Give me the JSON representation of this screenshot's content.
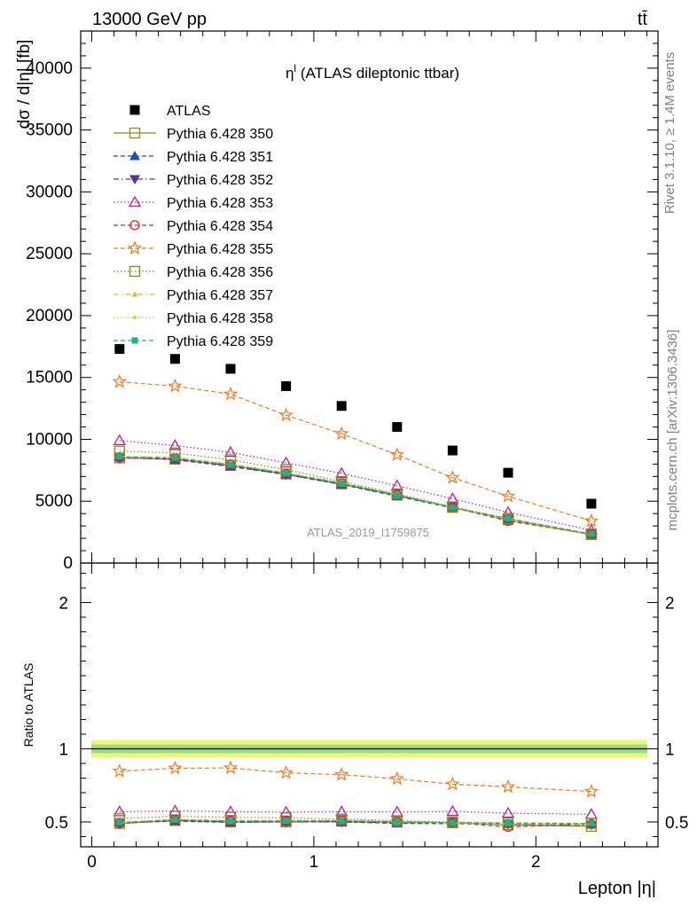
{
  "header": {
    "left": "13000 GeV pp",
    "right": "tt̄"
  },
  "side_labels": {
    "rivet": "Rivet 3.1.10, ≥ 1.4M events",
    "source": "mcplots.cern.ch [arXiv:1306.3436]"
  },
  "chart_data": [
    {
      "type": "line",
      "panel": "main",
      "title": "η",
      "title_sup": "l",
      "title_suffix": " (ATLAS dileptonic ttbar)",
      "xlabel": "Lepton |η|",
      "ylabel": "dσ / d|η| [fb]",
      "watermark": "ATLAS_2019_I1759875",
      "xlim": [
        -0.05,
        2.55
      ],
      "ylim": [
        0,
        43000
      ],
      "yticks": [
        0,
        5000,
        10000,
        15000,
        20000,
        25000,
        30000,
        35000,
        40000
      ],
      "ytick_labels": [
        "0",
        "5000",
        "10000",
        "15000",
        "20000",
        "25000",
        "30000",
        "35000",
        "40000"
      ],
      "x": [
        0.125,
        0.375,
        0.625,
        0.875,
        1.125,
        1.375,
        1.625,
        1.875,
        2.25
      ],
      "legend_position": "top-left",
      "series": [
        {
          "name": "ATLAS",
          "color": "#000000",
          "marker": "square-filled",
          "line": "none",
          "values": [
            17300,
            16500,
            15700,
            14300,
            12700,
            11000,
            9100,
            7300,
            4800
          ]
        },
        {
          "name": "Pythia 6.428 350",
          "color": "#8b8b1a",
          "marker": "square-open",
          "line": "solid",
          "values": [
            8500,
            8400,
            7900,
            7200,
            6400,
            5500,
            4500,
            3500,
            2300
          ]
        },
        {
          "name": "Pythia 6.428 351",
          "color": "#1f4fa8",
          "marker": "triangle-up-filled",
          "line": "dashed",
          "values": [
            8550,
            8350,
            7800,
            7150,
            6350,
            5400,
            4450,
            3550,
            2320
          ]
        },
        {
          "name": "Pythia 6.428 352",
          "color": "#5a2ab0",
          "marker": "triangle-down-filled",
          "line": "dashdot",
          "values": [
            8500,
            8400,
            7850,
            7150,
            6380,
            5450,
            4500,
            3520,
            2300
          ]
        },
        {
          "name": "Pythia 6.428 353",
          "color": "#c0189a",
          "marker": "triangle-up-open",
          "line": "dotted",
          "values": [
            9900,
            9500,
            8950,
            8100,
            7250,
            6250,
            5200,
            4100,
            2650
          ]
        },
        {
          "name": "Pythia 6.428 354",
          "color": "#e0242a",
          "marker": "circle-open",
          "line": "dashed",
          "values": [
            8500,
            8450,
            7950,
            7200,
            6450,
            5500,
            4500,
            3400,
            2330
          ]
        },
        {
          "name": "Pythia 6.428 355",
          "color": "#f07a20",
          "marker": "star-open",
          "line": "dashed",
          "values": [
            14650,
            14300,
            13650,
            11950,
            10450,
            8750,
            6900,
            5400,
            3400
          ]
        },
        {
          "name": "Pythia 6.428 356",
          "color": "#7a8f1a",
          "marker": "square-open",
          "line": "dotted",
          "values": [
            9050,
            8900,
            8350,
            7550,
            6600,
            5600,
            4550,
            3600,
            2350
          ]
        },
        {
          "name": "Pythia 6.428 357",
          "color": "#d4c21a",
          "marker": "triangle-small",
          "line": "dashdot",
          "values": [
            8600,
            8550,
            8000,
            7300,
            6500,
            5550,
            4500,
            3550,
            2330
          ]
        },
        {
          "name": "Pythia 6.428 358",
          "color": "#c8d81a",
          "marker": "dot",
          "line": "dotted",
          "values": [
            8550,
            8500,
            7950,
            7250,
            6450,
            5500,
            4480,
            3530,
            2320
          ]
        },
        {
          "name": "Pythia 6.428 359",
          "color": "#1ab58a",
          "marker": "square-filled-small",
          "line": "dashed",
          "values": [
            8600,
            8500,
            7950,
            7250,
            6450,
            5500,
            4500,
            3600,
            2350
          ]
        }
      ]
    },
    {
      "type": "line",
      "panel": "ratio",
      "ylabel": "Ratio to ATLAS",
      "xlim": [
        -0.05,
        2.55
      ],
      "ylim": [
        0.33,
        2.27
      ],
      "yticks": [
        0.5,
        1,
        2
      ],
      "ytick_labels": [
        "0.5",
        "1",
        "2"
      ],
      "xticks": [
        0,
        1,
        2
      ],
      "xtick_labels": [
        "0",
        "1",
        "2"
      ],
      "reference": 1,
      "bands": [
        {
          "lo": 0.94,
          "hi": 1.06,
          "color": "#f0f57a"
        },
        {
          "lo": 0.97,
          "hi": 1.03,
          "color": "#9be07a"
        }
      ],
      "x": [
        0.125,
        0.375,
        0.625,
        0.875,
        1.125,
        1.375,
        1.625,
        1.875,
        2.25
      ],
      "series": [
        {
          "name": "Pythia 6.428 350",
          "values": [
            0.49,
            0.51,
            0.5,
            0.5,
            0.505,
            0.5,
            0.495,
            0.48,
            0.47
          ]
        },
        {
          "name": "Pythia 6.428 351",
          "values": [
            0.495,
            0.505,
            0.497,
            0.5,
            0.5,
            0.49,
            0.488,
            0.487,
            0.483
          ]
        },
        {
          "name": "Pythia 6.428 352",
          "values": [
            0.49,
            0.51,
            0.5,
            0.5,
            0.5,
            0.495,
            0.495,
            0.482,
            0.48
          ]
        },
        {
          "name": "Pythia 6.428 353",
          "values": [
            0.57,
            0.575,
            0.57,
            0.567,
            0.57,
            0.568,
            0.572,
            0.56,
            0.552
          ]
        },
        {
          "name": "Pythia 6.428 354",
          "values": [
            0.49,
            0.512,
            0.506,
            0.503,
            0.508,
            0.5,
            0.495,
            0.466,
            0.485
          ]
        },
        {
          "name": "Pythia 6.428 355",
          "values": [
            0.847,
            0.867,
            0.869,
            0.836,
            0.823,
            0.795,
            0.758,
            0.74,
            0.708
          ]
        },
        {
          "name": "Pythia 6.428 356",
          "values": [
            0.523,
            0.539,
            0.532,
            0.528,
            0.52,
            0.509,
            0.5,
            0.493,
            0.49
          ]
        },
        {
          "name": "Pythia 6.428 357",
          "values": [
            0.497,
            0.518,
            0.51,
            0.51,
            0.512,
            0.505,
            0.495,
            0.486,
            0.485
          ]
        },
        {
          "name": "Pythia 6.428 358",
          "values": [
            0.494,
            0.515,
            0.506,
            0.507,
            0.508,
            0.5,
            0.492,
            0.484,
            0.483
          ]
        },
        {
          "name": "Pythia 6.428 359",
          "values": [
            0.497,
            0.515,
            0.506,
            0.507,
            0.508,
            0.5,
            0.495,
            0.493,
            0.49
          ]
        }
      ]
    }
  ]
}
